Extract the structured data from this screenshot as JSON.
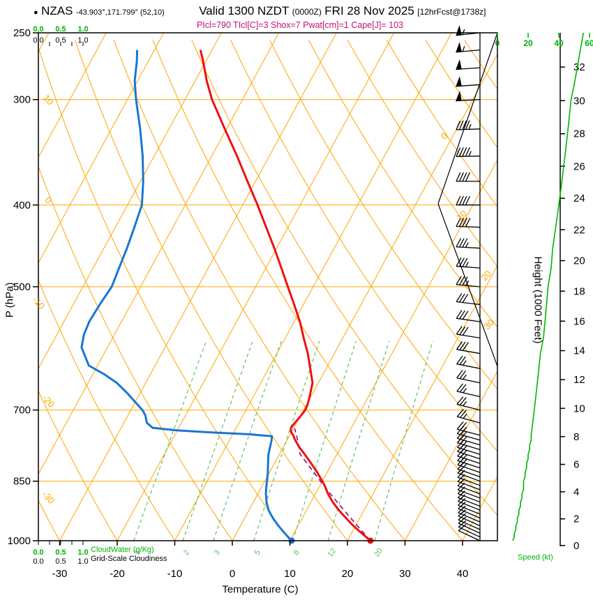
{
  "header": {
    "marker": "●",
    "station": "NZAS",
    "coords": "-43.903°,171.799° (52,10)",
    "valid": "Valid 1300 NZDT",
    "valid_utc": "(0000Z)",
    "date": "FRI 28 Nov 2025",
    "forecast": "[12hrFcst@1738z]"
  },
  "params": {
    "text": "PIcl=790 TIcl[C]=3 Shox=7 Pwat[cm]=1 Cape[J]= 103"
  },
  "axes": {
    "pressure": {
      "title": "P (hPa)",
      "ticks": [
        250,
        300,
        400,
        500,
        700,
        850,
        1000
      ]
    },
    "temperature": {
      "title": "Temperature (C)",
      "ticks": [
        -30,
        -20,
        -10,
        0,
        10,
        20,
        30,
        40
      ]
    },
    "height": {
      "title": "Height (1000 Feet)",
      "ticks": [
        0,
        2,
        4,
        6,
        8,
        10,
        12,
        14,
        16,
        18,
        20,
        22,
        24,
        26,
        28,
        30,
        32
      ]
    },
    "speed": {
      "title": "Speed (kt)",
      "ticks": [
        0,
        20,
        40,
        60
      ]
    },
    "cloudwater": {
      "scale_labels": [
        "0.0",
        "0.5",
        "1.0"
      ],
      "legend_green": "CloudWater (g/Kg)",
      "legend_black": "Grid-Scale Cloudiness"
    }
  },
  "grid": {
    "isotherm_step_C": 10,
    "isotherm_labels": [
      0,
      10,
      20,
      30
    ],
    "adiabat_labels": [
      10,
      0,
      -10,
      -20,
      -30
    ],
    "mixing_ratio_lines": [
      1,
      2,
      3,
      5,
      8,
      12,
      20
    ]
  },
  "chart_data": {
    "type": "line",
    "subtype": "skewt-logp-sounding",
    "title": "NZAS sounding valid 1300 NZDT FRI 28 Nov 2025 (12hr forecast)",
    "pressure_range_hPa": [
      250,
      1000
    ],
    "lcl_hPa": 790,
    "lcl_temp_C": 3,
    "showalter_index": 7,
    "pwat_cm": 1,
    "cape_J": 103,
    "surface_temp_C": 24,
    "surface_dewpoint_C": 10.3,
    "temperature_profile": [
      [
        1000,
        24
      ],
      [
        980,
        21.8
      ],
      [
        960,
        19.6
      ],
      [
        940,
        17.6
      ],
      [
        920,
        15.6
      ],
      [
        900,
        13.8
      ],
      [
        880,
        12.2
      ],
      [
        860,
        10.8
      ],
      [
        850,
        10
      ],
      [
        830,
        8.3
      ],
      [
        810,
        6.4
      ],
      [
        790,
        4.4
      ],
      [
        775,
        2.8
      ],
      [
        760,
        1.4
      ],
      [
        750,
        0.6
      ],
      [
        742,
        -0.2
      ],
      [
        735,
        -0.5
      ],
      [
        725,
        -0.3
      ],
      [
        715,
        0
      ],
      [
        705,
        0.2
      ],
      [
        700,
        0.3
      ],
      [
        690,
        0.2
      ],
      [
        675,
        -0.2
      ],
      [
        650,
        -1
      ],
      [
        630,
        -2.4
      ],
      [
        600,
        -4.6
      ],
      [
        575,
        -6.8
      ],
      [
        550,
        -9
      ],
      [
        525,
        -11.6
      ],
      [
        500,
        -14.4
      ],
      [
        475,
        -17.3
      ],
      [
        450,
        -20.4
      ],
      [
        425,
        -23.8
      ],
      [
        400,
        -27.4
      ],
      [
        375,
        -31.4
      ],
      [
        350,
        -35.6
      ],
      [
        325,
        -40.3
      ],
      [
        300,
        -45.3
      ],
      [
        285,
        -48
      ],
      [
        270,
        -50.5
      ],
      [
        262,
        -52
      ]
    ],
    "dewpoint_profile": [
      [
        1000,
        10.3
      ],
      [
        980,
        8.4
      ],
      [
        960,
        6.6
      ],
      [
        940,
        4.9
      ],
      [
        920,
        3.4
      ],
      [
        900,
        2.3
      ],
      [
        880,
        1.4
      ],
      [
        860,
        0.7
      ],
      [
        850,
        0.4
      ],
      [
        830,
        -0.3
      ],
      [
        810,
        -1.1
      ],
      [
        790,
        -1.9
      ],
      [
        775,
        -2.3
      ],
      [
        760,
        -2.7
      ],
      [
        752,
        -3
      ],
      [
        748,
        -7
      ],
      [
        744,
        -14
      ],
      [
        740,
        -20
      ],
      [
        735,
        -24.5
      ],
      [
        725,
        -26
      ],
      [
        710,
        -27
      ],
      [
        700,
        -28
      ],
      [
        685,
        -30
      ],
      [
        670,
        -32
      ],
      [
        650,
        -35
      ],
      [
        635,
        -38
      ],
      [
        620,
        -41.5
      ],
      [
        605,
        -43
      ],
      [
        590,
        -44.5
      ],
      [
        570,
        -45.3
      ],
      [
        550,
        -45.6
      ],
      [
        525,
        -45.4
      ],
      [
        500,
        -45
      ],
      [
        475,
        -45.5
      ],
      [
        450,
        -46
      ],
      [
        425,
        -46.7
      ],
      [
        400,
        -47.5
      ],
      [
        375,
        -49.5
      ],
      [
        350,
        -52
      ],
      [
        325,
        -55
      ],
      [
        300,
        -58.5
      ],
      [
        285,
        -60.5
      ],
      [
        270,
        -62
      ],
      [
        262,
        -63
      ]
    ],
    "parcel_path": [
      [
        1000,
        24
      ],
      [
        960,
        20.3
      ],
      [
        920,
        16.5
      ],
      [
        880,
        12.6
      ],
      [
        850,
        9.7
      ],
      [
        820,
        6.7
      ],
      [
        790,
        3.6
      ],
      [
        775,
        2.7
      ],
      [
        760,
        1.8
      ],
      [
        750,
        1.2
      ],
      [
        742,
        0.6
      ],
      [
        736,
        0.2
      ]
    ],
    "wind_profile": [
      [
        1000,
        295,
        10
      ],
      [
        990,
        295,
        11
      ],
      [
        980,
        295,
        11
      ],
      [
        970,
        294,
        12
      ],
      [
        960,
        294,
        12
      ],
      [
        950,
        293,
        13
      ],
      [
        940,
        293,
        13
      ],
      [
        930,
        292,
        14
      ],
      [
        920,
        292,
        14
      ],
      [
        910,
        291,
        15
      ],
      [
        900,
        291,
        15
      ],
      [
        890,
        290,
        16
      ],
      [
        880,
        290,
        16
      ],
      [
        870,
        290,
        17
      ],
      [
        860,
        290,
        17
      ],
      [
        850,
        290,
        17
      ],
      [
        840,
        289,
        18
      ],
      [
        830,
        289,
        18
      ],
      [
        820,
        288,
        19
      ],
      [
        810,
        288,
        19
      ],
      [
        800,
        288,
        20
      ],
      [
        790,
        287,
        20
      ],
      [
        780,
        287,
        21
      ],
      [
        770,
        286,
        21
      ],
      [
        760,
        286,
        22
      ],
      [
        750,
        285,
        22
      ],
      [
        725,
        285,
        23
      ],
      [
        700,
        284,
        24
      ],
      [
        675,
        283,
        25
      ],
      [
        650,
        282,
        26
      ],
      [
        625,
        281,
        27
      ],
      [
        600,
        280,
        28
      ],
      [
        575,
        279,
        30
      ],
      [
        550,
        278,
        31
      ],
      [
        525,
        277,
        32
      ],
      [
        500,
        275,
        33
      ],
      [
        475,
        274,
        35
      ],
      [
        450,
        273,
        36
      ],
      [
        425,
        272,
        38
      ],
      [
        400,
        270,
        40
      ],
      [
        375,
        270,
        42
      ],
      [
        350,
        269,
        44
      ],
      [
        325,
        268,
        46
      ],
      [
        300,
        267,
        48
      ],
      [
        288,
        266,
        50
      ],
      [
        275,
        266,
        52
      ],
      [
        262,
        265,
        54
      ],
      [
        250,
        264,
        56
      ]
    ]
  },
  "colors": {
    "grid_orange": "#ffa500",
    "mixing_green": "#63c063",
    "scale_green": "#00b400",
    "temperature_red": "#ee1111",
    "dewpoint_blue": "#1976d2",
    "parcel_purple": "#8b008b",
    "params_magenta": "#c0136e",
    "axis_black": "#000000"
  }
}
